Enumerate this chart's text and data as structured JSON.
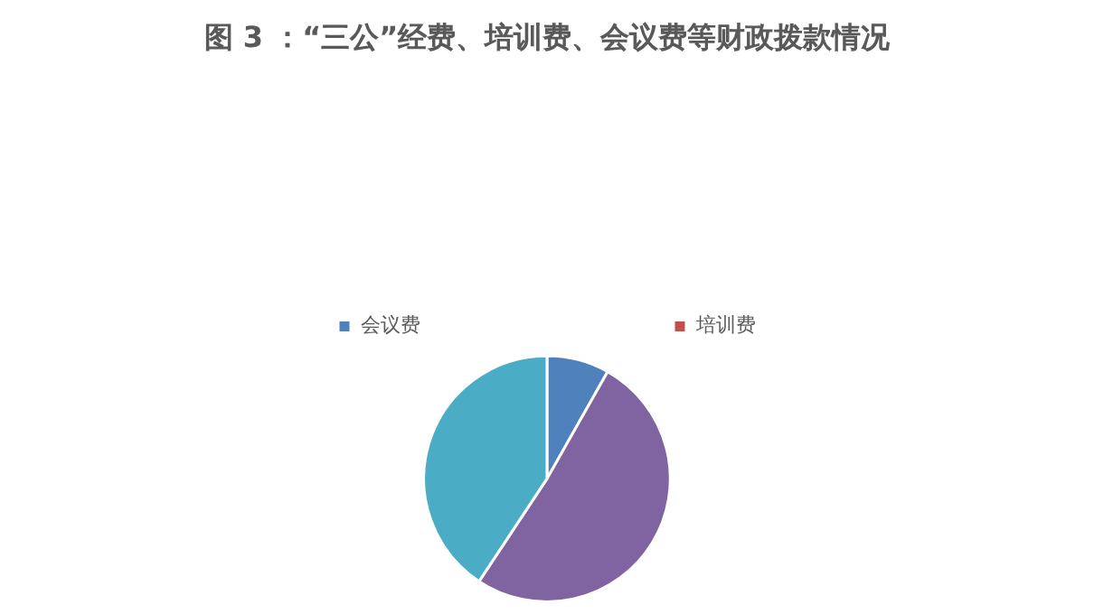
{
  "chart_data": {
    "type": "pie",
    "title": "图 3 ：“三公”经费、培训费、会议费等财政拨款情况",
    "categories": [
      "会议费",
      "培训费",
      null,
      null
    ],
    "values": [
      8.2,
      0,
      51.1,
      40.7
    ],
    "colors": [
      "#4f81bd",
      "#c0504d",
      "#8064a2",
      "#4bacc6"
    ],
    "legend": "top"
  }
}
